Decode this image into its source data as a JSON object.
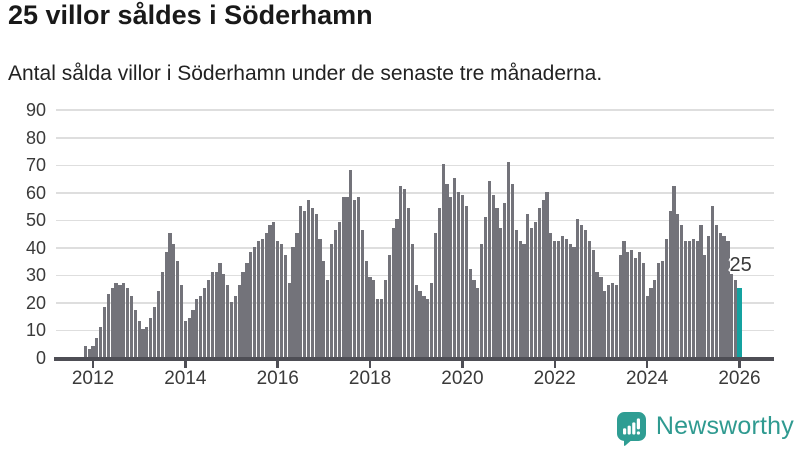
{
  "title": "25 villor såldes i Söderhamn",
  "subtitle": "Antal sålda villor i Söderhamn under de senaste tre månaderna.",
  "annotation": {
    "label": "25"
  },
  "branding": {
    "name": "Newsworthy"
  },
  "colors": {
    "bar": "#73737a",
    "highlight": "#14a2a0",
    "grid": "#dedede",
    "axis": "#4e4e55",
    "tick_text": "#3a3a3a",
    "brand_teal": "#2f9a90"
  },
  "chart_data": {
    "type": "bar",
    "title": "25 villor såldes i Söderhamn",
    "subtitle": "Antal sålda villor i Söderhamn under de senaste tre månaderna.",
    "xlabel": "",
    "ylabel": "",
    "grid": true,
    "legend": false,
    "start_month": "2011-11",
    "end_month": "2026-01",
    "ylim": [
      0,
      95
    ],
    "y_ticks": [
      0,
      10,
      20,
      30,
      40,
      50,
      60,
      70,
      80,
      90
    ],
    "x_tick_labels": [
      "2012",
      "2014",
      "2016",
      "2018",
      "2020",
      "2022",
      "2024",
      "2026"
    ],
    "highlight_last": true,
    "last_value": 25,
    "values": [
      4,
      3,
      4,
      7,
      11,
      18,
      23,
      25,
      27,
      26,
      27,
      25,
      22,
      17,
      13,
      10,
      11,
      14,
      18,
      24,
      31,
      38,
      45,
      41,
      35,
      26,
      13,
      14,
      17,
      21,
      22,
      25,
      28,
      31,
      31,
      34,
      30,
      26,
      20,
      22,
      26,
      31,
      34,
      38,
      40,
      42,
      43,
      45,
      48,
      49,
      42,
      41,
      37,
      27,
      40,
      45,
      55,
      53,
      57,
      54,
      52,
      43,
      35,
      28,
      41,
      46,
      49,
      58,
      58,
      68,
      57,
      58,
      46,
      35,
      29,
      28,
      21,
      21,
      28,
      37,
      47,
      50,
      62,
      61,
      54,
      41,
      26,
      24,
      22,
      21,
      27,
      45,
      54,
      70,
      63,
      58,
      65,
      60,
      59,
      55,
      32,
      28,
      25,
      41,
      51,
      64,
      59,
      54,
      47,
      56,
      71,
      63,
      46,
      42,
      41,
      52,
      47,
      49,
      54,
      57,
      60,
      45,
      42,
      42,
      44,
      43,
      41,
      40,
      50,
      48,
      46,
      42,
      39,
      31,
      29,
      24,
      26,
      27,
      26,
      37,
      42,
      38,
      39,
      36,
      38,
      34,
      22,
      25,
      28,
      34,
      35,
      43,
      53,
      62,
      52,
      48,
      42,
      42,
      43,
      42,
      48,
      37,
      44,
      55,
      48,
      45,
      44,
      42,
      30,
      28,
      25
    ]
  }
}
